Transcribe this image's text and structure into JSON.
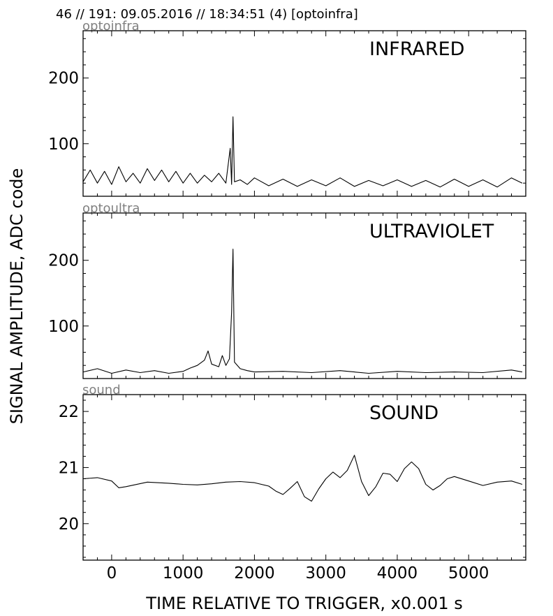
{
  "figure": {
    "suptitle": "46 // 191:   09.05.2016 // 18:34:51 (4)  [optoinfra]",
    "ylabel": "SIGNAL AMPLITUDE,  ADC code",
    "xlabel": "TIME RELATIVE TO TRIGGER,   x0.001 s"
  },
  "chart_data": [
    {
      "type": "line",
      "tag": "optoinfra",
      "title": "INFRARED",
      "xlim": [
        -400,
        5800
      ],
      "ylim": [
        20,
        272
      ],
      "xticks": [
        0,
        1000,
        2000,
        3000,
        4000,
        5000
      ],
      "yticks": [
        100,
        200
      ],
      "grid": false,
      "series": [
        {
          "x": [
            -400,
            -300,
            -200,
            -100,
            0,
            100,
            200,
            300,
            400,
            500,
            600,
            700,
            800,
            900,
            1000,
            1100,
            1200,
            1300,
            1400,
            1500,
            1600,
            1660,
            1680,
            1700,
            1720,
            1800,
            1900,
            2000,
            2200,
            2400,
            2600,
            2800,
            3000,
            3200,
            3400,
            3600,
            3800,
            4000,
            4200,
            4400,
            4600,
            4800,
            5000,
            5200,
            5400,
            5600,
            5750
          ],
          "y": [
            42,
            60,
            40,
            58,
            38,
            65,
            42,
            55,
            40,
            62,
            44,
            60,
            42,
            58,
            40,
            55,
            40,
            52,
            42,
            55,
            40,
            93,
            38,
            141,
            42,
            45,
            38,
            48,
            36,
            46,
            35,
            45,
            36,
            48,
            35,
            44,
            36,
            45,
            35,
            44,
            34,
            46,
            35,
            45,
            34,
            48,
            40
          ]
        }
      ]
    },
    {
      "type": "line",
      "tag": "optoultra",
      "title": "ULTRAVIOLET",
      "xlim": [
        -400,
        5800
      ],
      "ylim": [
        20,
        272
      ],
      "xticks": [
        0,
        1000,
        2000,
        3000,
        4000,
        5000
      ],
      "yticks": [
        100,
        200
      ],
      "grid": false,
      "series": [
        {
          "x": [
            -400,
            -200,
            0,
            200,
            400,
            600,
            800,
            1000,
            1100,
            1200,
            1300,
            1350,
            1400,
            1500,
            1550,
            1600,
            1650,
            1680,
            1700,
            1720,
            1800,
            1900,
            2000,
            2400,
            2800,
            3200,
            3600,
            4000,
            4400,
            4800,
            5200,
            5600,
            5750
          ],
          "y": [
            30,
            35,
            28,
            33,
            29,
            32,
            28,
            31,
            36,
            40,
            48,
            62,
            42,
            38,
            55,
            40,
            50,
            121,
            217,
            45,
            35,
            32,
            30,
            31,
            29,
            32,
            28,
            31,
            29,
            30,
            29,
            33,
            30
          ]
        }
      ]
    },
    {
      "type": "line",
      "tag": "sound",
      "title": "SOUND",
      "xlim": [
        -400,
        5800
      ],
      "ylim": [
        19.35,
        22.3
      ],
      "xticks": [
        0,
        1000,
        2000,
        3000,
        4000,
        5000
      ],
      "yticks": [
        20,
        21,
        22
      ],
      "grid": false,
      "series": [
        {
          "x": [
            -400,
            -200,
            0,
            100,
            200,
            500,
            800,
            1000,
            1200,
            1400,
            1600,
            1800,
            2000,
            2200,
            2300,
            2400,
            2500,
            2600,
            2700,
            2800,
            2900,
            3000,
            3100,
            3200,
            3300,
            3400,
            3500,
            3600,
            3700,
            3800,
            3900,
            4000,
            4100,
            4200,
            4300,
            4400,
            4500,
            4600,
            4700,
            4800,
            5000,
            5200,
            5400,
            5600,
            5750
          ],
          "y": [
            20.8,
            20.82,
            20.76,
            20.64,
            20.66,
            20.74,
            20.72,
            20.7,
            20.69,
            20.71,
            20.74,
            20.75,
            20.73,
            20.67,
            20.58,
            20.52,
            20.63,
            20.75,
            20.48,
            20.4,
            20.62,
            20.8,
            20.92,
            20.82,
            20.95,
            21.22,
            20.75,
            20.5,
            20.66,
            20.9,
            20.88,
            20.75,
            20.98,
            21.1,
            20.98,
            20.7,
            20.6,
            20.68,
            20.8,
            20.84,
            20.76,
            20.68,
            20.74,
            20.76,
            20.7
          ]
        }
      ]
    }
  ]
}
